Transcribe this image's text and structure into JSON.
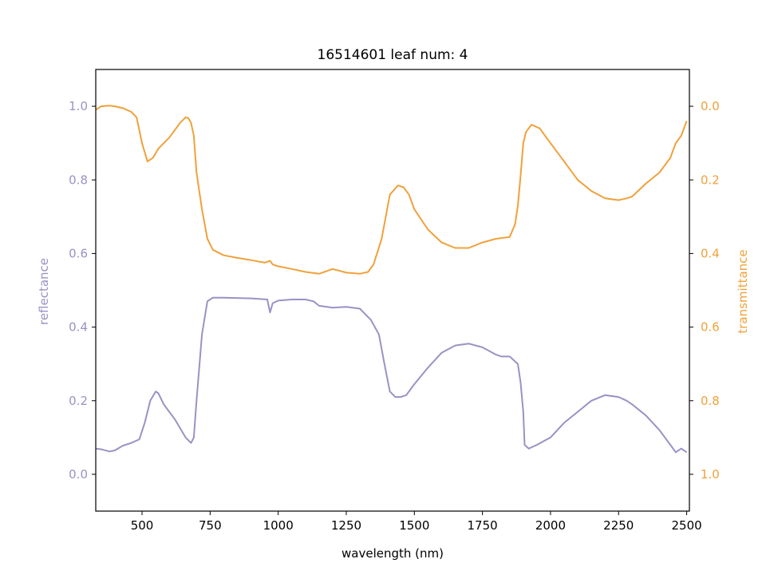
{
  "chart_data": {
    "type": "line",
    "title": "16514601 leaf num: 4",
    "xlabel": "wavelength (nm)",
    "ylabel_left": "reflectance",
    "ylabel_right": "transmittance",
    "xlim": [
      330,
      2510
    ],
    "ylim_left": [
      -0.1,
      1.1
    ],
    "ylim_right_inverted": [
      -0.1,
      1.1
    ],
    "x_ticks": [
      500,
      750,
      1000,
      1250,
      1500,
      1750,
      2000,
      2250,
      2500
    ],
    "x_tick_labels": [
      "500",
      "750",
      "1000",
      "1250",
      "1500",
      "1750",
      "2000",
      "2250",
      "2500"
    ],
    "y_left_ticks": [
      0.0,
      0.2,
      0.4,
      0.6,
      0.8,
      1.0
    ],
    "y_left_tick_labels": [
      "0.0",
      "0.2",
      "0.4",
      "0.6",
      "0.8",
      "1.0"
    ],
    "y_right_ticks": [
      0.0,
      0.2,
      0.4,
      0.6,
      0.8,
      1.0
    ],
    "y_right_tick_labels": [
      "0.0",
      "0.2",
      "0.4",
      "0.6",
      "0.8",
      "1.0"
    ],
    "grid": false,
    "colors": {
      "reflectance": "#9893c4",
      "transmittance": "#f0a13b",
      "axes": "#000000"
    },
    "series": [
      {
        "axis": "left",
        "color": "#9893c4",
        "x": [
          330,
          350,
          380,
          400,
          430,
          460,
          490,
          510,
          530,
          550,
          560,
          580,
          600,
          620,
          640,
          660,
          680,
          690,
          700,
          720,
          740,
          760,
          800,
          900,
          960,
          970,
          980,
          1000,
          1050,
          1100,
          1130,
          1150,
          1200,
          1250,
          1300,
          1340,
          1370,
          1390,
          1410,
          1430,
          1450,
          1470,
          1500,
          1550,
          1600,
          1650,
          1700,
          1750,
          1800,
          1820,
          1850,
          1880,
          1890,
          1900,
          1905,
          1920,
          1950,
          2000,
          2050,
          2100,
          2150,
          2200,
          2250,
          2280,
          2300,
          2350,
          2400,
          2420,
          2440,
          2460,
          2480,
          2500
        ],
        "y": [
          0.07,
          0.068,
          0.062,
          0.065,
          0.078,
          0.085,
          0.095,
          0.14,
          0.2,
          0.225,
          0.22,
          0.19,
          0.17,
          0.15,
          0.125,
          0.1,
          0.085,
          0.1,
          0.2,
          0.38,
          0.47,
          0.48,
          0.48,
          0.478,
          0.475,
          0.44,
          0.465,
          0.472,
          0.475,
          0.475,
          0.47,
          0.458,
          0.453,
          0.455,
          0.45,
          0.42,
          0.38,
          0.3,
          0.225,
          0.21,
          0.21,
          0.215,
          0.245,
          0.29,
          0.33,
          0.35,
          0.355,
          0.345,
          0.325,
          0.32,
          0.32,
          0.3,
          0.25,
          0.17,
          0.08,
          0.07,
          0.08,
          0.1,
          0.14,
          0.17,
          0.2,
          0.215,
          0.21,
          0.2,
          0.19,
          0.16,
          0.12,
          0.1,
          0.08,
          0.06,
          0.07,
          0.06
        ]
      },
      {
        "axis": "right",
        "color": "#f0a13b",
        "x": [
          330,
          350,
          380,
          400,
          430,
          460,
          480,
          500,
          520,
          540,
          560,
          580,
          600,
          620,
          640,
          660,
          670,
          680,
          690,
          700,
          720,
          740,
          760,
          800,
          850,
          900,
          950,
          970,
          980,
          1000,
          1050,
          1100,
          1150,
          1200,
          1250,
          1300,
          1330,
          1350,
          1380,
          1410,
          1440,
          1460,
          1480,
          1500,
          1550,
          1600,
          1650,
          1700,
          1750,
          1800,
          1850,
          1870,
          1880,
          1890,
          1900,
          1910,
          1930,
          1960,
          2000,
          2050,
          2100,
          2150,
          2200,
          2250,
          2280,
          2300,
          2350,
          2400,
          2440,
          2460,
          2480,
          2500
        ],
        "y": [
          0.01,
          0.0,
          -0.002,
          0.0,
          0.005,
          0.015,
          0.03,
          0.1,
          0.15,
          0.14,
          0.115,
          0.1,
          0.085,
          0.065,
          0.045,
          0.03,
          0.032,
          0.045,
          0.08,
          0.18,
          0.28,
          0.36,
          0.39,
          0.405,
          0.412,
          0.418,
          0.425,
          0.42,
          0.43,
          0.435,
          0.442,
          0.45,
          0.455,
          0.442,
          0.452,
          0.455,
          0.45,
          0.43,
          0.36,
          0.24,
          0.215,
          0.22,
          0.24,
          0.28,
          0.335,
          0.37,
          0.385,
          0.385,
          0.37,
          0.36,
          0.355,
          0.32,
          0.27,
          0.19,
          0.1,
          0.07,
          0.05,
          0.06,
          0.1,
          0.15,
          0.2,
          0.23,
          0.25,
          0.255,
          0.25,
          0.245,
          0.21,
          0.18,
          0.14,
          0.1,
          0.08,
          0.04
        ]
      }
    ]
  }
}
